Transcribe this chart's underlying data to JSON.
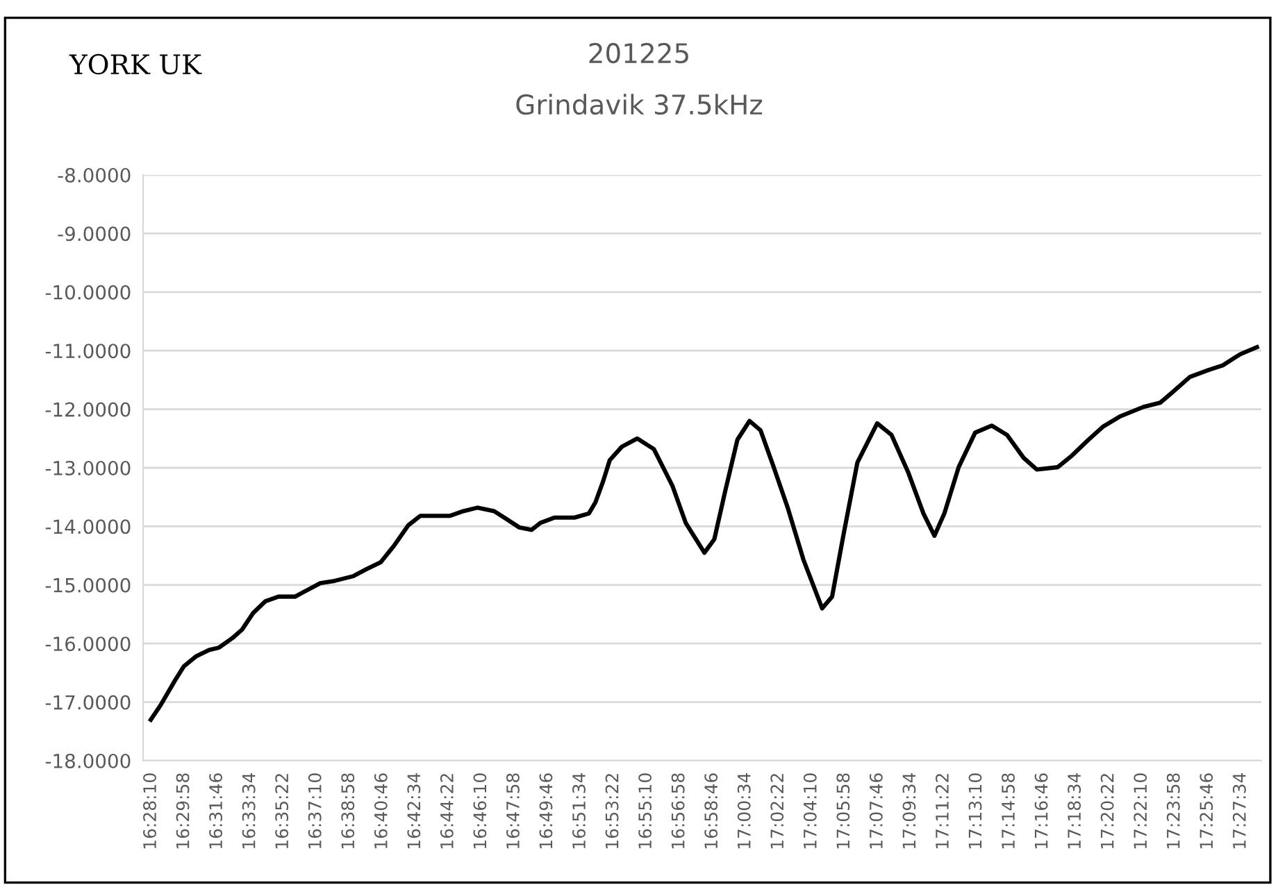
{
  "chart_data": {
    "type": "line",
    "title": "201225",
    "subtitle": "Grindavik 37.5kHz",
    "annotations": [
      "YORK UK"
    ],
    "x": [
      16.469,
      16.478,
      16.491,
      16.499,
      16.51,
      16.522,
      16.531,
      16.543,
      16.552,
      16.562,
      16.573,
      16.585,
      16.6,
      16.608,
      16.623,
      16.636,
      16.653,
      16.665,
      16.678,
      16.69,
      16.703,
      16.714,
      16.741,
      16.753,
      16.766,
      16.781,
      16.791,
      16.804,
      16.815,
      16.823,
      16.836,
      16.854,
      16.867,
      16.873,
      16.88,
      16.886,
      16.897,
      16.911,
      16.926,
      16.943,
      16.955,
      16.972,
      16.981,
      16.991,
      17.002,
      17.013,
      17.023,
      17.035,
      17.048,
      17.062,
      17.079,
      17.088,
      17.098,
      17.111,
      17.129,
      17.142,
      17.157,
      17.171,
      17.181,
      17.19,
      17.203,
      17.218,
      17.233,
      17.247,
      17.262,
      17.274,
      17.293,
      17.306,
      17.321,
      17.334,
      17.35,
      17.371,
      17.386,
      17.396,
      17.413,
      17.43,
      17.443,
      17.459,
      17.474
    ],
    "series": [
      {
        "color": "#000000",
        "values": [
          -17.3,
          -17.05,
          -16.63,
          -16.39,
          -16.22,
          -16.11,
          -16.07,
          -15.91,
          -15.76,
          -15.48,
          -15.28,
          -15.2,
          -15.2,
          -15.12,
          -14.97,
          -14.93,
          -14.85,
          -14.73,
          -14.61,
          -14.33,
          -13.98,
          -13.82,
          -13.82,
          -13.74,
          -13.68,
          -13.74,
          -13.86,
          -14.02,
          -14.06,
          -13.94,
          -13.85,
          -13.85,
          -13.78,
          -13.59,
          -13.23,
          -12.87,
          -12.64,
          -12.5,
          -12.68,
          -13.31,
          -13.94,
          -14.45,
          -14.22,
          -13.39,
          -12.52,
          -12.2,
          -12.36,
          -12.99,
          -13.7,
          -14.57,
          -15.4,
          -15.2,
          -14.18,
          -12.91,
          -12.24,
          -12.44,
          -13.07,
          -13.78,
          -14.16,
          -13.78,
          -12.99,
          -12.4,
          -12.28,
          -12.44,
          -12.83,
          -13.03,
          -12.99,
          -12.79,
          -12.52,
          -12.3,
          -12.12,
          -11.96,
          -11.89,
          -11.73,
          -11.45,
          -11.33,
          -11.25,
          -11.06,
          -10.94
        ]
      }
    ],
    "xlim": [
      16.462,
      17.478
    ],
    "xticks": [
      {
        "value": 16.4694,
        "label": "16:28:10"
      },
      {
        "value": 16.4994,
        "label": "16:29:58"
      },
      {
        "value": 16.5294,
        "label": "16:31:46"
      },
      {
        "value": 16.5594,
        "label": "16:33:34"
      },
      {
        "value": 16.5894,
        "label": "16:35:22"
      },
      {
        "value": 16.6194,
        "label": "16:37:10"
      },
      {
        "value": 16.6494,
        "label": "16:38:58"
      },
      {
        "value": 16.6794,
        "label": "16:40:46"
      },
      {
        "value": 16.7094,
        "label": "16:42:34"
      },
      {
        "value": 16.7394,
        "label": "16:44:22"
      },
      {
        "value": 16.7694,
        "label": "16:46:10"
      },
      {
        "value": 16.7994,
        "label": "16:47:58"
      },
      {
        "value": 16.8294,
        "label": "16:49:46"
      },
      {
        "value": 16.8594,
        "label": "16:51:34"
      },
      {
        "value": 16.8894,
        "label": "16:53:22"
      },
      {
        "value": 16.9194,
        "label": "16:55:10"
      },
      {
        "value": 16.9494,
        "label": "16:56:58"
      },
      {
        "value": 16.9794,
        "label": "16:58:46"
      },
      {
        "value": 17.0094,
        "label": "17:00:34"
      },
      {
        "value": 17.0394,
        "label": "17:02:22"
      },
      {
        "value": 17.0694,
        "label": "17:04:10"
      },
      {
        "value": 17.0994,
        "label": "17:05:58"
      },
      {
        "value": 17.1294,
        "label": "17:07:46"
      },
      {
        "value": 17.1594,
        "label": "17:09:34"
      },
      {
        "value": 17.1894,
        "label": "17:11:22"
      },
      {
        "value": 17.2194,
        "label": "17:13:10"
      },
      {
        "value": 17.2494,
        "label": "17:14:58"
      },
      {
        "value": 17.2794,
        "label": "17:16:46"
      },
      {
        "value": 17.3094,
        "label": "17:18:34"
      },
      {
        "value": 17.3394,
        "label": "17:20:22"
      },
      {
        "value": 17.3694,
        "label": "17:22:10"
      },
      {
        "value": 17.3994,
        "label": "17:23:58"
      },
      {
        "value": 17.4294,
        "label": "17:25:46"
      },
      {
        "value": 17.4594,
        "label": "17:27:34"
      }
    ],
    "ylim": [
      -18,
      -8
    ],
    "yticks": [
      {
        "value": -8,
        "label": "-8.0000"
      },
      {
        "value": -9,
        "label": "-9.0000"
      },
      {
        "value": -10,
        "label": "-10.0000"
      },
      {
        "value": -11,
        "label": "-11.0000"
      },
      {
        "value": -12,
        "label": "-12.0000"
      },
      {
        "value": -13,
        "label": "-13.0000"
      },
      {
        "value": -14,
        "label": "-14.0000"
      },
      {
        "value": -15,
        "label": "-15.0000"
      },
      {
        "value": -16,
        "label": "-16.0000"
      },
      {
        "value": -17,
        "label": "-17.0000"
      },
      {
        "value": -18,
        "label": "-18.0000"
      }
    ],
    "grid": "y",
    "legend": false,
    "marker": "none",
    "line_style": "solid"
  }
}
